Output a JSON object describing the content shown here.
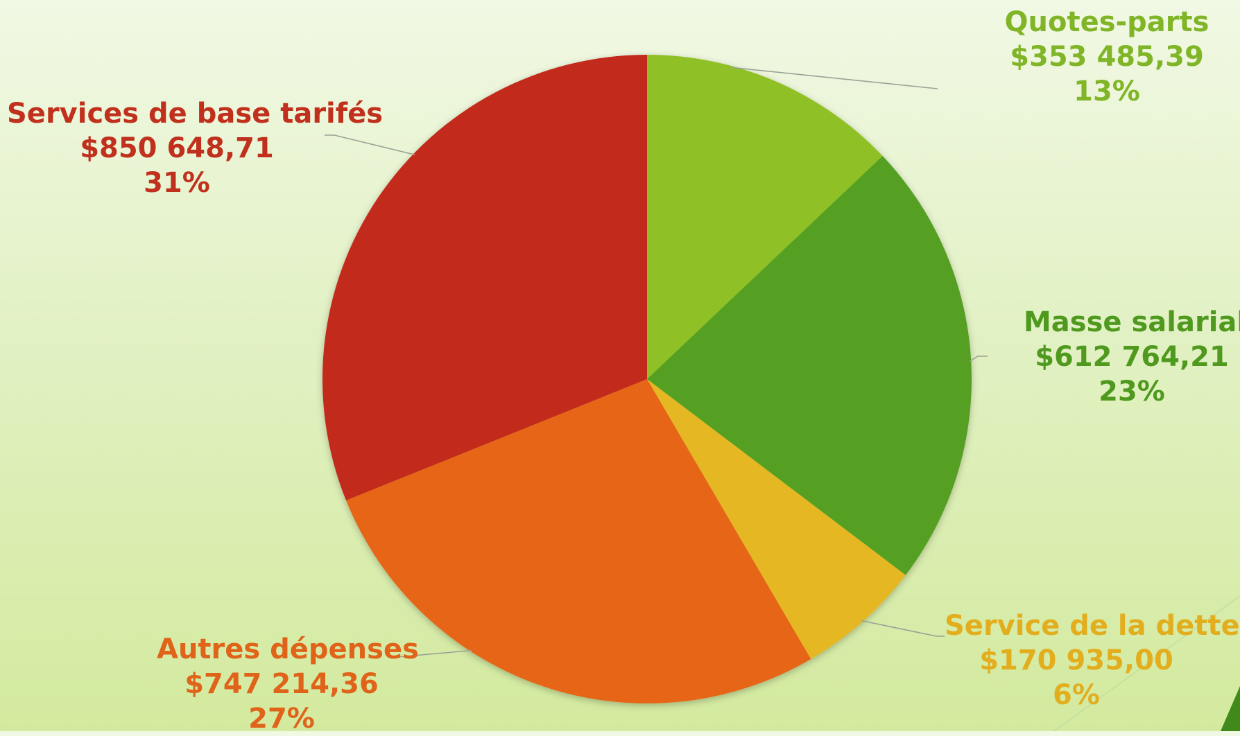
{
  "chart_data": {
    "type": "pie",
    "start_angle_deg": 0,
    "direction": "clockwise",
    "slices": [
      {
        "label": "Quotes-parts",
        "value": 353485.39,
        "value_text": "$353 485,39",
        "percent_text": "13%",
        "color": "#8fc126",
        "label_color": "#7fb526"
      },
      {
        "label": "Masse salariale",
        "value": 612764.21,
        "value_text": "$612 764,21",
        "percent_text": "23%",
        "color": "#54a022",
        "label_color": "#4f9a1e"
      },
      {
        "label": "Service de la dette",
        "value": 170935.0,
        "value_text": "$170 935,00",
        "percent_text": "6%",
        "color": "#e5b720",
        "label_color": "#e2ae1e"
      },
      {
        "label": "Autres dépenses",
        "value": 747214.36,
        "value_text": "$747 214,36",
        "percent_text": "27%",
        "color": "#e66518",
        "label_color": "#e0631a"
      },
      {
        "label": "Services de base tarifés",
        "value": 850648.71,
        "value_text": "$850 648,71",
        "percent_text": "31%",
        "color": "#c22c1a",
        "label_color": "#c0301c"
      }
    ],
    "legend": "none",
    "data_labels": "outside with leader lines"
  }
}
